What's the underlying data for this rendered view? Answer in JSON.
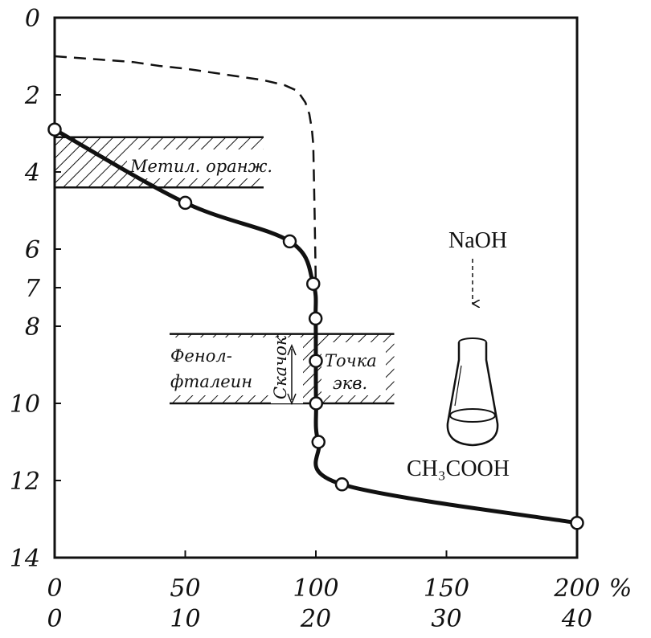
{
  "chart_data": {
    "type": "line",
    "x": [
      0,
      50,
      90,
      99,
      99.9,
      100,
      100.1,
      101,
      110,
      200
    ],
    "ph": [
      2.9,
      4.8,
      5.8,
      6.9,
      7.8,
      8.9,
      10,
      11,
      12.1,
      13.1
    ],
    "y_ticks": [
      "0",
      "2",
      "4",
      "6",
      "7",
      "8",
      "10",
      "12",
      "14"
    ],
    "x_ticks_percent": [
      "0",
      "50",
      "100",
      "150",
      "200"
    ],
    "x_unit": "%",
    "x_ticks_volume": [
      "0",
      "10",
      "20",
      "30",
      "40"
    ],
    "x_secondary_values": [
      0,
      10,
      20,
      30,
      40
    ],
    "strong_acid_curve": {
      "x": [
        0,
        10,
        20,
        30,
        40,
        50,
        60,
        70,
        80,
        88,
        93,
        96,
        97.5,
        98.5,
        99,
        99.5,
        100
      ],
      "ph": [
        1,
        1.05,
        1.1,
        1.15,
        1.25,
        1.32,
        1.42,
        1.52,
        1.62,
        1.75,
        1.9,
        2.2,
        2.5,
        2.9,
        3.3,
        5,
        7
      ]
    },
    "methyl_orange_zone": {
      "label": "Метил. оранж.",
      "ph_range": [
        3.1,
        4.4
      ],
      "x_range": [
        0,
        80
      ]
    },
    "phenolphthalein_zone": {
      "label_line1": "Фенол-",
      "label_line2": "фталеин",
      "ph_range": [
        8.2,
        10
      ],
      "x_range": [
        44,
        130
      ]
    },
    "jump_label": "Скачок",
    "equivalence_label_line1": "Точка",
    "equivalence_label_line2": "экв.",
    "titrant": "NaOH",
    "analyte": "CH₃COOH",
    "ylim": [
      0,
      14
    ],
    "xlim": [
      0,
      200
    ]
  }
}
